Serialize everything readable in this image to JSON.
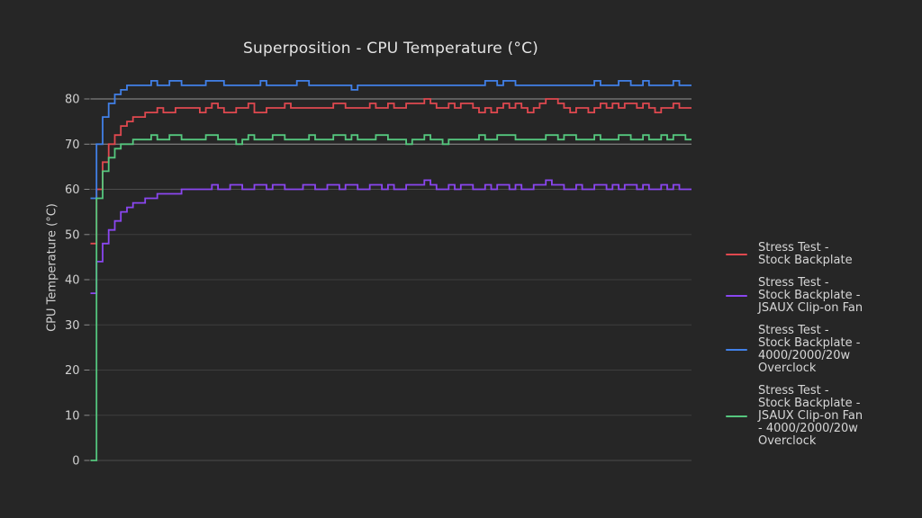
{
  "chart_data": {
    "type": "line",
    "title": "Superposition - CPU Temperature (°C)",
    "xlabel": "",
    "ylabel": "CPU Temperature (°C)",
    "ylim": [
      0,
      85
    ],
    "yticks": [
      0,
      10,
      20,
      30,
      40,
      50,
      60,
      70,
      80
    ],
    "x_tick_labels_visible": false,
    "grid": true,
    "legend_position": "right-outside",
    "background_color": "#262626",
    "grid_style": {
      "default_color": "#3e3e3e",
      "mid_color": "#4c4c4c",
      "bright_color": "#949494",
      "bright_ticks": [
        70,
        80
      ],
      "mid_ticks": [
        0,
        60
      ],
      "tick_mark_color": "#8a8a8a"
    },
    "text_colors": {
      "title": "#e3e3e3",
      "tick_label": "#d0d0d0",
      "legend": "#d6d6d6"
    },
    "series": [
      {
        "name": "Stress Test - Stock Backplate",
        "legend_lines": [
          "Stress Test -",
          "Stock Backplate"
        ],
        "color": "#e0484f",
        "steady_state_c": 78,
        "values": [
          48,
          60,
          66,
          70,
          72,
          74,
          75,
          76,
          76,
          77,
          77,
          78,
          77,
          77,
          78,
          78,
          78,
          78,
          77,
          78,
          79,
          78,
          77,
          77,
          78,
          78,
          79,
          77,
          77,
          78,
          78,
          78,
          79,
          78,
          78,
          78,
          78,
          78,
          78,
          78,
          79,
          79,
          78,
          78,
          78,
          78,
          79,
          78,
          78,
          79,
          78,
          78,
          79,
          79,
          79,
          80,
          79,
          78,
          78,
          79,
          78,
          79,
          79,
          78,
          77,
          78,
          77,
          78,
          79,
          78,
          79,
          78,
          77,
          78,
          79,
          80,
          80,
          79,
          78,
          77,
          78,
          78,
          77,
          78,
          79,
          78,
          79,
          78,
          79,
          79,
          78,
          79,
          78,
          77,
          78,
          78,
          79,
          78,
          78,
          78
        ]
      },
      {
        "name": "Stress Test - Stock Backplate - JSAUX Clip-on Fan",
        "legend_lines": [
          "Stress Test -",
          "Stock Backplate -",
          "JSAUX Clip-on Fan"
        ],
        "color": "#8a46f0",
        "steady_state_c": 60.5,
        "values": [
          37,
          44,
          48,
          51,
          53,
          55,
          56,
          57,
          57,
          58,
          58,
          59,
          59,
          59,
          59,
          60,
          60,
          60,
          60,
          60,
          61,
          60,
          60,
          61,
          61,
          60,
          60,
          61,
          61,
          60,
          61,
          61,
          60,
          60,
          60,
          61,
          61,
          60,
          60,
          61,
          61,
          60,
          61,
          61,
          60,
          60,
          61,
          61,
          60,
          61,
          60,
          60,
          61,
          61,
          61,
          62,
          61,
          60,
          60,
          61,
          60,
          61,
          61,
          60,
          60,
          61,
          60,
          61,
          61,
          60,
          61,
          60,
          60,
          61,
          61,
          62,
          61,
          61,
          60,
          60,
          61,
          60,
          60,
          61,
          61,
          60,
          61,
          60,
          61,
          61,
          60,
          61,
          60,
          60,
          61,
          60,
          61,
          60,
          60,
          60
        ]
      },
      {
        "name": "Stress Test - Stock Backplate - 4000/2000/20w Overclock",
        "legend_lines": [
          "Stress Test -",
          "Stock Backplate -",
          "4000/2000/20w",
          "Overclock"
        ],
        "color": "#4180e8",
        "steady_state_c": 83,
        "values": [
          58,
          70,
          76,
          79,
          81,
          82,
          83,
          83,
          83,
          83,
          84,
          83,
          83,
          84,
          84,
          83,
          83,
          83,
          83,
          84,
          84,
          84,
          83,
          83,
          83,
          83,
          83,
          83,
          84,
          83,
          83,
          83,
          83,
          83,
          84,
          84,
          83,
          83,
          83,
          83,
          83,
          83,
          83,
          82,
          83,
          83,
          83,
          83,
          83,
          83,
          83,
          83,
          83,
          83,
          83,
          83,
          83,
          83,
          83,
          83,
          83,
          83,
          83,
          83,
          83,
          84,
          84,
          83,
          84,
          84,
          83,
          83,
          83,
          83,
          83,
          83,
          83,
          83,
          83,
          83,
          83,
          83,
          83,
          84,
          83,
          83,
          83,
          84,
          84,
          83,
          83,
          84,
          83,
          83,
          83,
          83,
          84,
          83,
          83,
          83
        ]
      },
      {
        "name": "Stress Test - Stock Backplate - JSAUX Clip-on Fan - 4000/2000/20w Overclock",
        "legend_lines": [
          "Stress Test -",
          "Stock Backplate -",
          "JSAUX Clip-on Fan",
          "- 4000/2000/20w",
          "Overclock"
        ],
        "color": "#55c77e",
        "steady_state_c": 71,
        "values": [
          0,
          58,
          64,
          67,
          69,
          70,
          70,
          71,
          71,
          71,
          72,
          71,
          71,
          72,
          72,
          71,
          71,
          71,
          71,
          72,
          72,
          71,
          71,
          71,
          70,
          71,
          72,
          71,
          71,
          71,
          72,
          72,
          71,
          71,
          71,
          71,
          72,
          71,
          71,
          71,
          72,
          72,
          71,
          72,
          71,
          71,
          71,
          72,
          72,
          71,
          71,
          71,
          70,
          71,
          71,
          72,
          71,
          71,
          70,
          71,
          71,
          71,
          71,
          71,
          72,
          71,
          71,
          72,
          72,
          72,
          71,
          71,
          71,
          71,
          71,
          72,
          72,
          71,
          72,
          72,
          71,
          71,
          71,
          72,
          71,
          71,
          71,
          72,
          72,
          71,
          71,
          72,
          71,
          71,
          72,
          71,
          72,
          72,
          71,
          71
        ]
      }
    ]
  }
}
